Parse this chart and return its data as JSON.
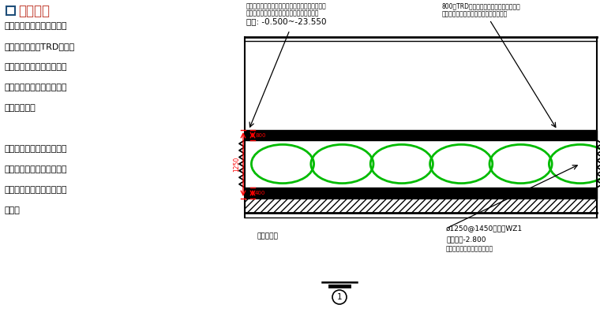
{
  "title": "围护设计",
  "title_square_color": "#1f4e79",
  "title_text_color": "#c0392b",
  "left_text_lines": [
    "周边围护体采用灌注桩排桩",
    "围护墙结合外侧TRD工法等",
    "厚度水泥土搅拌墙帷幕，基",
    "坑内竖向设置三道钢筋混凝",
    "土支撑体系。",
    "",
    "采用桩墙合一技术，即围护",
    "桩同时考虑作为正常使用阶",
    "段地下室侧壁挡土结构的一",
    "部分。"
  ],
  "top_left_label1": "围护桩与止水帷幕之间采用素混凝土填充止水措施",
  "top_left_label2": "选择桩顶处理方案，确保桩与之间的连接性能",
  "top_left_label3": "标高: -0.500~-23.550",
  "top_right_label1": "800厚TRD工法等厚水泥土搅拌墙止水帷幕",
  "top_right_label2": "标高范围见本图说明，搅拌桩编号见说明",
  "bottom_left_label": "地下室侧墙",
  "bottom_right_label1": "ø1250@1450灌注桩WZ1",
  "bottom_right_label2": "桩顶标高-2.800",
  "bottom_right_label3": "桩顶标高范围见本图平面注注",
  "dim_1250": "1250",
  "dim_800": "800",
  "dim_400": "400",
  "circle_color": "#00bb00",
  "bg_color": "#ffffff",
  "text_color": "#000000",
  "dim_color": "#ff0000",
  "n_circles": 6
}
